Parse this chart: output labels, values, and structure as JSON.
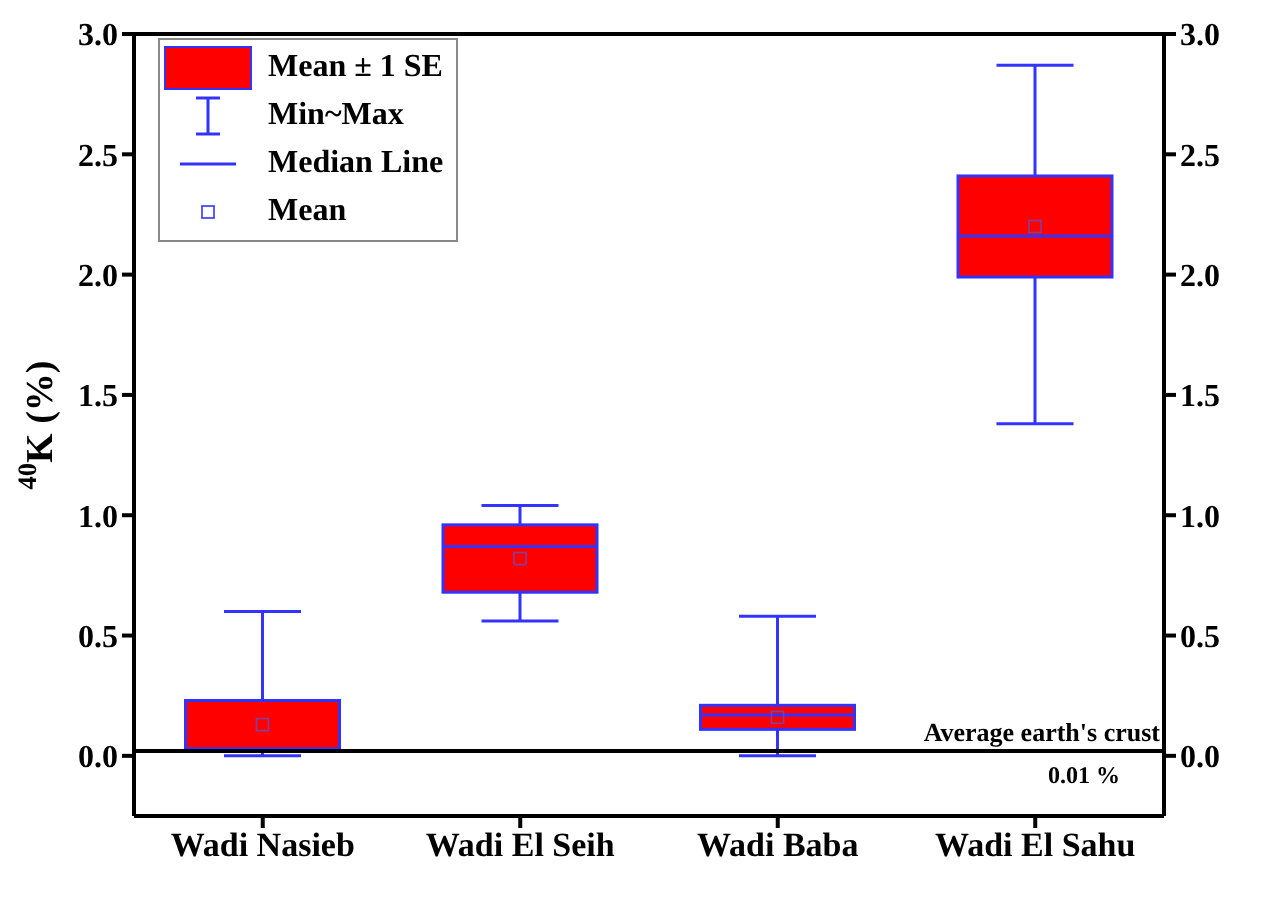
{
  "chart_data": {
    "type": "box",
    "ylabel": "$^{40}$K (%)",
    "categories": [
      "Wadi Nasieb",
      "Wadi El Seih",
      "Wadi Baba",
      "Wadi El Sahu"
    ],
    "series": [
      {
        "name": "Mean ± 1 SE",
        "color": "#ff0000",
        "boxes": [
          {
            "low": 0,
            "q1": 0.02,
            "median": 0.03,
            "q3": 0.23,
            "high": 0.6,
            "mean": 0.13
          },
          {
            "low": 0.56,
            "q1": 0.68,
            "median": 0.87,
            "q3": 0.96,
            "high": 1.04,
            "mean": 0.82
          },
          {
            "low": 0,
            "q1": 0.11,
            "median": 0.17,
            "q3": 0.21,
            "high": 0.58,
            "mean": 0.16
          },
          {
            "low": 1.38,
            "q1": 1.99,
            "median": 2.16,
            "q3": 2.41,
            "high": 2.87,
            "mean": 2.2
          }
        ]
      }
    ],
    "ylim": [
      -0.25,
      3
    ],
    "yticks": [
      {
        "value": 0,
        "label": "0.0"
      },
      0.5,
      {
        "value": 1,
        "label": "1.0"
      },
      1.5,
      {
        "value": 2,
        "label": "2.0"
      },
      2.5,
      {
        "value": 3,
        "label": "3.0"
      }
    ],
    "y2lim": [
      -0.25,
      3
    ],
    "y2ticks": [
      {
        "value": 0,
        "label": "0.0"
      },
      0.5,
      {
        "value": 1,
        "label": "1.0"
      },
      1.5,
      {
        "value": 2,
        "label": "2.0"
      },
      2.5,
      {
        "value": 3,
        "label": "3.0"
      }
    ],
    "ref_lines": [
      {
        "axis": "y",
        "value": 0.02,
        "label": "Average earth's crust",
        "color": "#000000"
      }
    ],
    "annotations": [
      "Min~Max",
      "Median Line",
      "Mean",
      "0.01 %"
    ],
    "legend": "top left"
  }
}
